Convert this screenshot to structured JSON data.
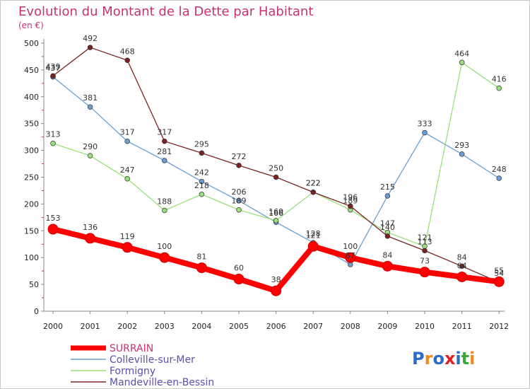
{
  "chart_data": {
    "type": "line",
    "title": "Evolution du Montant de la Dette par Habitant",
    "subtitle": "(en €)",
    "x": [
      "2000",
      "2001",
      "2002",
      "2003",
      "2004",
      "2005",
      "2006",
      "2007",
      "2008",
      "2009",
      "2010",
      "2011",
      "2012"
    ],
    "ylim": [
      0,
      500
    ],
    "yticks": [
      "0",
      "50",
      "100",
      "150",
      "200",
      "250",
      "300",
      "350",
      "400",
      "450",
      "500"
    ],
    "grid": false,
    "legend_position": "bottom-left",
    "series": [
      {
        "name": "SURRAIN",
        "color": "#ff0000",
        "values": [
          153,
          136,
          119,
          100,
          81,
          60,
          38,
          121,
          100,
          84,
          73,
          64,
          55
        ]
      },
      {
        "name": "Colleville-sur-Mer",
        "color": "#6a9fd4",
        "values": [
          437,
          381,
          317,
          281,
          242,
          206,
          166,
          128,
          87,
          215,
          333,
          293,
          248
        ]
      },
      {
        "name": "Formigny",
        "color": "#99e07a",
        "values": [
          313,
          290,
          247,
          188,
          218,
          189,
          169,
          222,
          189,
          147,
          121,
          464,
          416
        ]
      },
      {
        "name": "Mandeville-en-Bessin",
        "color": "#7a2222",
        "values": [
          439,
          492,
          468,
          317,
          295,
          272,
          250,
          222,
          196,
          140,
          113,
          84,
          54
        ]
      }
    ],
    "logo_text": "Proxiti"
  }
}
